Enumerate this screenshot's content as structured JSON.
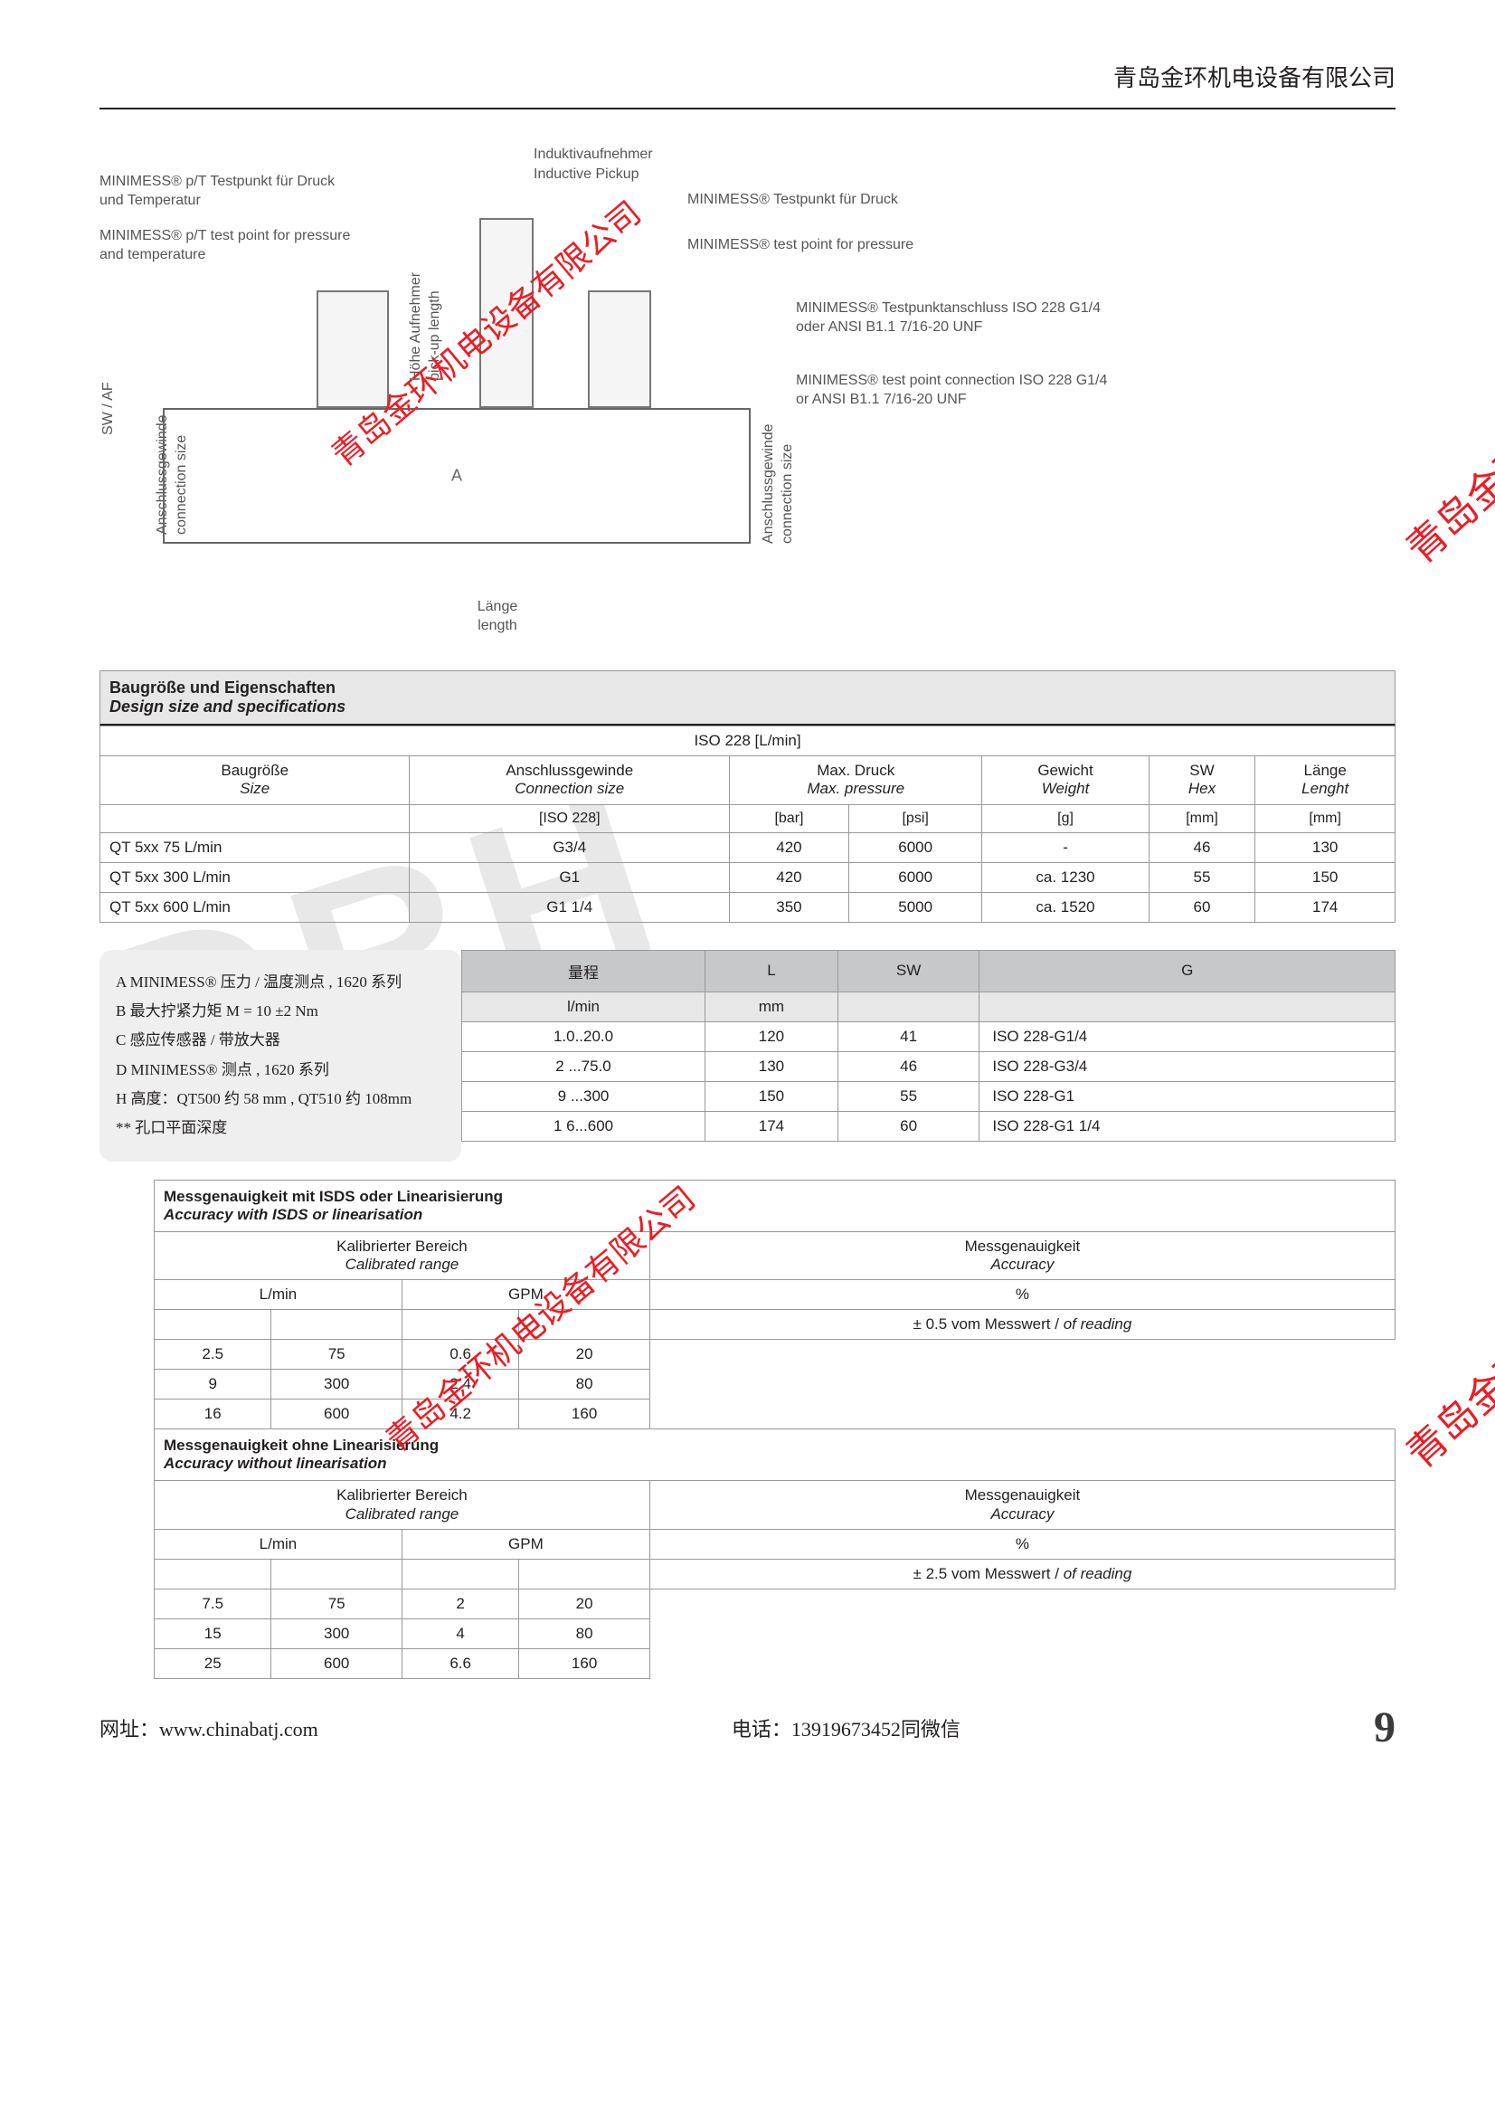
{
  "header": {
    "company": "青岛金环机电设备有限公司"
  },
  "watermarks": {
    "diag1": "青岛金环机电设备有限公司",
    "diag2": "青岛金环机电设备有限公司",
    "side1": "青岛金环",
    "side2": "青岛金环",
    "bg": "DRH"
  },
  "diagram": {
    "label_pt_de": "MINIMESS® p/T Testpunkt für Druck und Temperatur",
    "label_pt_en": "MINIMESS® p/T test point for pressure and temperature",
    "label_pickup_de": "Induktivaufnehmer",
    "label_pickup_en": "Inductive Pickup",
    "label_p_de": "MINIMESS® Testpunkt für Druck",
    "label_p_en": "MINIMESS® test point for pressure",
    "label_conn_de": "MINIMESS® Testpunktanschluss ISO 228 G1/4 oder ANSI B1.1 7/16-20 UNF",
    "label_conn_en": "MINIMESS® test point connection ISO 228 G1/4 or ANSI B1.1 7/16-20 UNF",
    "label_sw": "SW / AF",
    "label_thread_de": "Anschlussgewinde",
    "label_thread_en": "connection size",
    "label_thread2_de": "Anschlussgewinde",
    "label_thread2_en": "connection size",
    "label_hohe_de": "Höhe Aufnehmer",
    "label_hohe_en": "pick-up length",
    "label_a": "A",
    "label_len_de": "Länge",
    "label_len_en": "length"
  },
  "table1": {
    "title_de": "Baugröße und Eigenschaften",
    "title_en": "Design size and specifications",
    "group": "ISO 228 [L/min]",
    "cols": [
      {
        "de": "Baugröße",
        "en": "Size"
      },
      {
        "de": "Anschlussgewinde",
        "en": "Connection size"
      },
      {
        "de": "Max. Druck",
        "en": "Max. pressure"
      },
      {
        "de": "Gewicht",
        "en": "Weight"
      },
      {
        "de": "SW",
        "en": "Hex"
      },
      {
        "de": "Länge",
        "en": "Lenght"
      }
    ],
    "units": [
      "",
      "[ISO 228]",
      "[bar]",
      "[psi]",
      "[g]",
      "[mm]",
      "[mm]"
    ],
    "rows": [
      [
        "QT 5xx   75 L/min",
        "G3/4",
        "420",
        "6000",
        "-",
        "46",
        "130"
      ],
      [
        "QT 5xx 300 L/min",
        "G1",
        "420",
        "6000",
        "ca. 1230",
        "55",
        "150"
      ],
      [
        "QT 5xx 600 L/min",
        "G1 1/4",
        "350",
        "5000",
        "ca. 1520",
        "60",
        "174"
      ]
    ]
  },
  "notes": {
    "a": "A MINIMESS® 压力 / 温度测点 , 1620 系列",
    "b": "B 最大拧紧力矩 M = 10 ±2 Nm",
    "c": "C 感应传感器 / 带放大器",
    "d": "D MINIMESS® 测点 , 1620 系列",
    "h": "H 高度：QT500 约 58 mm , QT510 约 108mm",
    "star": "** 孔口平面深度"
  },
  "table2": {
    "headers": [
      "量程",
      "L",
      "SW",
      "G"
    ],
    "units": [
      "l/min",
      "mm",
      "",
      ""
    ],
    "rows": [
      [
        "1.0..20.0",
        "120",
        "41",
        "ISO 228-G1/4"
      ],
      [
        "2 ...75.0",
        "130",
        "46",
        "ISO 228-G3/4"
      ],
      [
        "9 ...300",
        "150",
        "55",
        "ISO 228-G1"
      ],
      [
        "1 6...600",
        "174",
        "60",
        "ISO 228-G1 1/4"
      ]
    ]
  },
  "table3a": {
    "title_de": "Messgenauigkeit mit ISDS oder Linearisierung",
    "title_en": "Accuracy with ISDS or linearisation",
    "hdr_range_de": "Kalibrierter Bereich",
    "hdr_range_en": "Calibrated range",
    "hdr_acc_de": "Messgenauigkeit",
    "hdr_acc_en": "Accuracy",
    "unit_lmin": "L/min",
    "unit_gpm": "GPM",
    "unit_pct": "%",
    "rows": [
      [
        "2.5",
        "75",
        "0.6",
        "20"
      ],
      [
        "9",
        "300",
        "2.4",
        "80"
      ],
      [
        "16",
        "600",
        "4.2",
        "160"
      ]
    ],
    "accuracy": "± 0.5 vom Messwert / of reading"
  },
  "table3b": {
    "title_de": "Messgenauigkeit ohne Linearisierung",
    "title_en": "Accuracy without linearisation",
    "rows": [
      [
        "7.5",
        "75",
        "2",
        "20"
      ],
      [
        "15",
        "300",
        "4",
        "80"
      ],
      [
        "25",
        "600",
        "6.6",
        "160"
      ]
    ],
    "accuracy": "± 2.5 vom Messwert / of reading"
  },
  "footer": {
    "url_label": "网址：",
    "url": "www.chinabatj.com",
    "tel_label": "电话：",
    "tel": "13919673452同微信",
    "page": "9"
  }
}
